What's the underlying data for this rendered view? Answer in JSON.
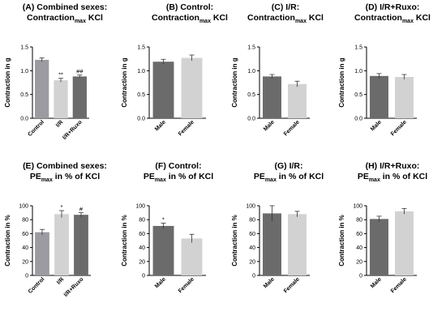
{
  "colors": {
    "dark": "#6b6b6b",
    "medium": "#9b9ba1",
    "light": "#d2d2d2"
  },
  "chart_data": [
    {
      "type": "bar",
      "id": "A",
      "title": "(A) Combined sexes:",
      "title2_pre": "Contraction",
      "title2_sub": "max",
      "title2_post": " KCl",
      "ylabel": "Contraction in g",
      "ylim": [
        0,
        1.5
      ],
      "yticks": [
        "0.0",
        "0.5",
        "1.0",
        "1.5"
      ],
      "categories": [
        "Control",
        "I/R",
        "I/R+Ruxo"
      ],
      "values": [
        1.23,
        0.8,
        0.88
      ],
      "errors": [
        0.04,
        0.04,
        0.03
      ],
      "bar_colors": [
        "medium",
        "light",
        "dark"
      ],
      "annotations": [
        "",
        "**",
        "##"
      ]
    },
    {
      "type": "bar",
      "id": "B",
      "title": "(B) Control:",
      "title2_pre": "Contraction",
      "title2_sub": "max",
      "title2_post": " KCl",
      "ylabel": "Contraction in g",
      "ylim": [
        0,
        1.5
      ],
      "yticks": [
        "0.0",
        "0.5",
        "1.0",
        "1.5"
      ],
      "categories": [
        "Male",
        "Female"
      ],
      "values": [
        1.19,
        1.27
      ],
      "errors": [
        0.05,
        0.06
      ],
      "bar_colors": [
        "dark",
        "light"
      ],
      "annotations": [
        "",
        ""
      ]
    },
    {
      "type": "bar",
      "id": "C",
      "title": "(C) I/R:",
      "title2_pre": "Contraction",
      "title2_sub": "max",
      "title2_post": " KCl",
      "ylabel": "Contraction in g",
      "ylim": [
        0,
        1.5
      ],
      "yticks": [
        "0.0",
        "0.5",
        "1.0",
        "1.5"
      ],
      "categories": [
        "Male",
        "Female"
      ],
      "values": [
        0.88,
        0.72
      ],
      "errors": [
        0.04,
        0.06
      ],
      "bar_colors": [
        "dark",
        "light"
      ],
      "annotations": [
        "",
        ""
      ]
    },
    {
      "type": "bar",
      "id": "D",
      "title": "(D) I/R+Ruxo:",
      "title2_pre": "Contraction",
      "title2_sub": "max",
      "title2_post": " KCl",
      "ylabel": "Contraction in g",
      "ylim": [
        0,
        1.5
      ],
      "yticks": [
        "0.0",
        "0.5",
        "1.0",
        "1.5"
      ],
      "categories": [
        "Male",
        "Female"
      ],
      "values": [
        0.89,
        0.87
      ],
      "errors": [
        0.05,
        0.05
      ],
      "bar_colors": [
        "dark",
        "light"
      ],
      "annotations": [
        "",
        ""
      ]
    },
    {
      "type": "bar",
      "id": "E",
      "title": "(E) Combined sexes:",
      "title2_pre": "PE",
      "title2_sub": "max",
      "title2_post": " in % of KCl",
      "ylabel": "Contraction in %",
      "ylim": [
        0,
        100
      ],
      "yticks": [
        "0",
        "20",
        "40",
        "60",
        "80",
        "100"
      ],
      "categories": [
        "Control",
        "I/R",
        "I/R+Ruxo"
      ],
      "values": [
        62,
        88,
        87
      ],
      "errors": [
        4,
        5,
        3
      ],
      "bar_colors": [
        "medium",
        "light",
        "dark"
      ],
      "annotations": [
        "",
        "*",
        "#"
      ]
    },
    {
      "type": "bar",
      "id": "F",
      "title": "(F) Control:",
      "title2_pre": "PE",
      "title2_sub": "max",
      "title2_post": " in % of  KCl",
      "ylabel": "Contraction in %",
      "ylim": [
        0,
        100
      ],
      "yticks": [
        "0",
        "20",
        "40",
        "60",
        "80",
        "100"
      ],
      "categories": [
        "Male",
        "Female"
      ],
      "values": [
        71,
        53
      ],
      "errors": [
        4,
        6
      ],
      "bar_colors": [
        "dark",
        "light"
      ],
      "annotations": [
        "*",
        ""
      ]
    },
    {
      "type": "bar",
      "id": "G",
      "title": "(G) I/R:",
      "title2_pre": "PE",
      "title2_sub": "max",
      "title2_post": " in % of KCl",
      "ylabel": "Contraction in %",
      "ylim": [
        0,
        100
      ],
      "yticks": [
        "0",
        "20",
        "40",
        "60",
        "80",
        "100"
      ],
      "categories": [
        "Male",
        "Female"
      ],
      "values": [
        89,
        88
      ],
      "errors": [
        11,
        4
      ],
      "bar_colors": [
        "dark",
        "light"
      ],
      "annotations": [
        "",
        ""
      ]
    },
    {
      "type": "bar",
      "id": "H",
      "title": "(H) I/R+Ruxo:",
      "title2_pre": "PE",
      "title2_sub": "max",
      "title2_post": " in % of KCl",
      "ylabel": "Contraction in %",
      "ylim": [
        0,
        100
      ],
      "yticks": [
        "0",
        "20",
        "40",
        "60",
        "80",
        "100"
      ],
      "categories": [
        "Male",
        "Female"
      ],
      "values": [
        81,
        92
      ],
      "errors": [
        4,
        4
      ],
      "bar_colors": [
        "dark",
        "light"
      ],
      "annotations": [
        "",
        ""
      ]
    }
  ]
}
